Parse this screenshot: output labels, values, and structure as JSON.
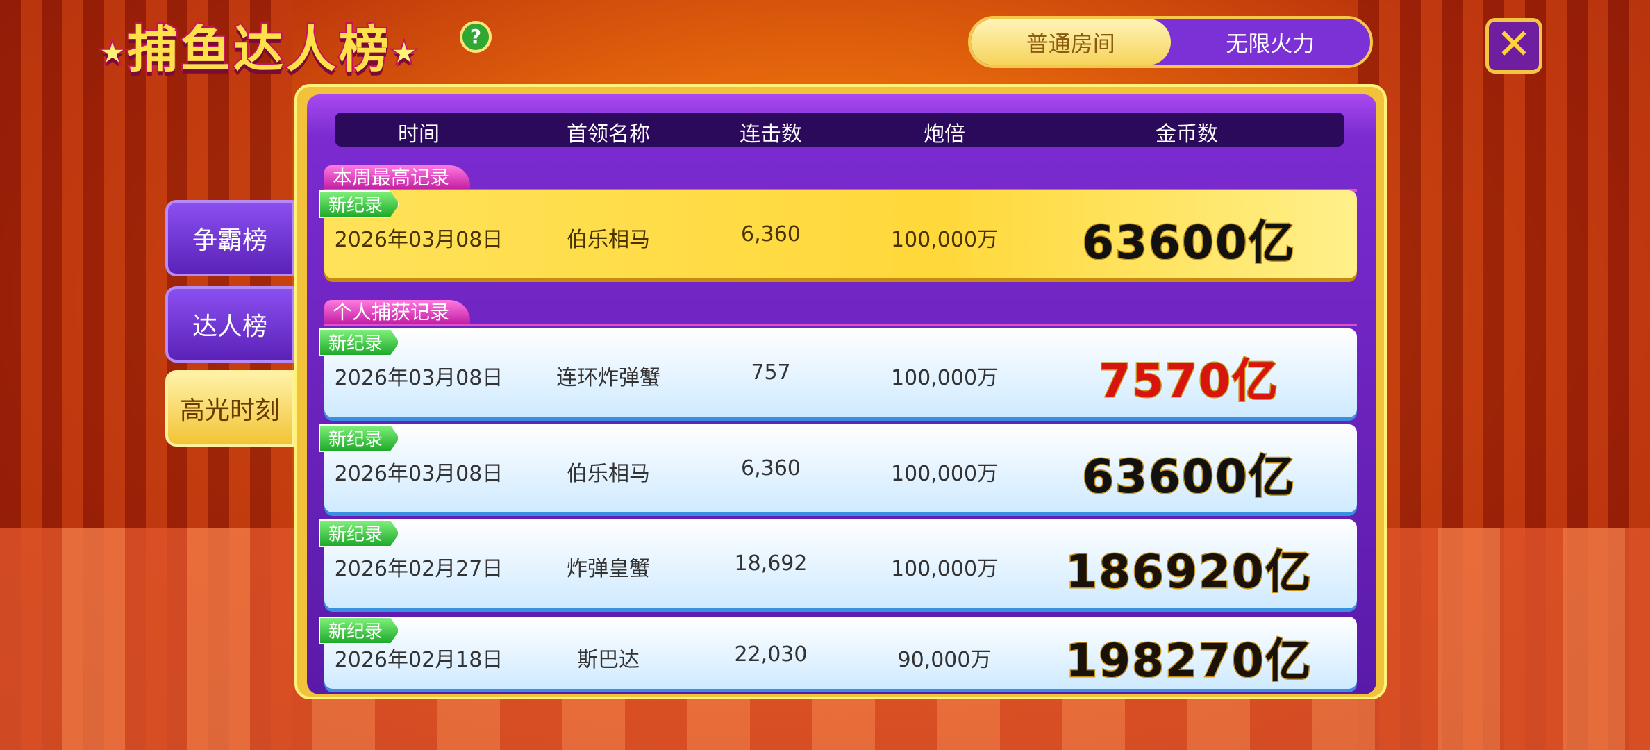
{
  "title": "捕鱼达人榜",
  "title_stars": "★",
  "help_label": "?",
  "room_tabs": [
    {
      "label": "普通房间",
      "selected": true
    },
    {
      "label": "无限火力",
      "selected": false
    }
  ],
  "close_label": "✕",
  "side_tabs": [
    {
      "label": "争霸榜",
      "selected": false
    },
    {
      "label": "达人榜",
      "selected": false
    },
    {
      "label": "高光时刻",
      "selected": true
    }
  ],
  "columns": [
    "时间",
    "首领名称",
    "连击数",
    "炮倍",
    "金币数"
  ],
  "weekly": {
    "section_label": "本周最高记录",
    "rows": [
      {
        "tag": "新纪录",
        "date": "2026年03月08日",
        "boss": "伯乐相马",
        "combo": "6,360",
        "multiplier": "100,000万",
        "coins": "63600亿"
      }
    ]
  },
  "personal": {
    "section_label": "个人捕获记录",
    "rows": [
      {
        "tag": "新纪录",
        "date": "2026年03月08日",
        "boss": "连环炸弹蟹",
        "combo": "757",
        "multiplier": "100,000万",
        "coins": "7570亿",
        "coin_color": "#d8140e"
      },
      {
        "tag": "新纪录",
        "date": "2026年03月08日",
        "boss": "伯乐相马",
        "combo": "6,360",
        "multiplier": "100,000万",
        "coins": "63600亿",
        "coin_color": "#111111"
      },
      {
        "tag": "新纪录",
        "date": "2026年02月27日",
        "boss": "炸弹皇蟹",
        "combo": "18,692",
        "multiplier": "100,000万",
        "coins": "186920亿",
        "coin_color": "#1a1208"
      },
      {
        "tag": "新纪录",
        "date": "2026年02月18日",
        "boss": "斯巴达",
        "combo": "22,030",
        "multiplier": "90,000万",
        "coins": "198270亿",
        "coin_color": "#1a1208"
      }
    ]
  }
}
